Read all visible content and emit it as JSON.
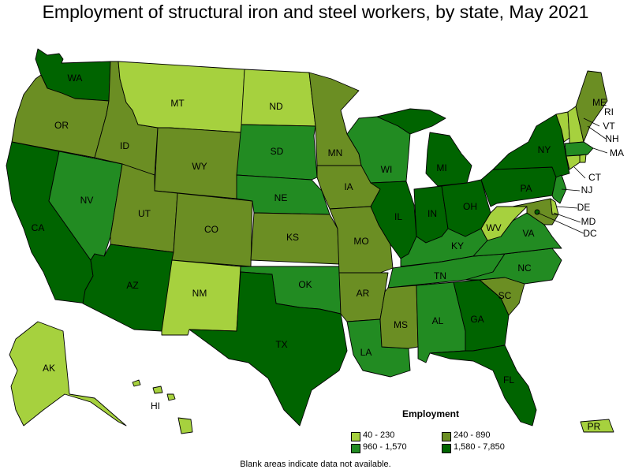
{
  "title": "Employment of structural iron and steel workers, by state, May 2021",
  "legend": {
    "title": "Employment",
    "items": [
      {
        "label": "40 - 230",
        "color": "#a6d13e"
      },
      {
        "label": "240 - 890",
        "color": "#6b8e23"
      },
      {
        "label": "960 - 1,570",
        "color": "#228b22"
      },
      {
        "label": "1,580 - 7,850",
        "color": "#006400"
      }
    ]
  },
  "note": "Blank areas indicate data not available.",
  "states": {
    "WA": {
      "label": "WA",
      "color": "#006400"
    },
    "OR": {
      "label": "OR",
      "color": "#6b8e23"
    },
    "CA": {
      "label": "CA",
      "color": "#006400"
    },
    "NV": {
      "label": "NV",
      "color": "#228b22"
    },
    "ID": {
      "label": "ID",
      "color": "#6b8e23"
    },
    "MT": {
      "label": "MT",
      "color": "#a6d13e"
    },
    "WY": {
      "label": "WY",
      "color": "#6b8e23"
    },
    "UT": {
      "label": "UT",
      "color": "#6b8e23"
    },
    "AZ": {
      "label": "AZ",
      "color": "#006400"
    },
    "CO": {
      "label": "CO",
      "color": "#6b8e23"
    },
    "NM": {
      "label": "NM",
      "color": "#a6d13e"
    },
    "ND": {
      "label": "ND",
      "color": "#a6d13e"
    },
    "SD": {
      "label": "SD",
      "color": "#228b22"
    },
    "NE": {
      "label": "NE",
      "color": "#228b22"
    },
    "KS": {
      "label": "KS",
      "color": "#6b8e23"
    },
    "OK": {
      "label": "OK",
      "color": "#228b22"
    },
    "TX": {
      "label": "TX",
      "color": "#006400"
    },
    "MN": {
      "label": "MN",
      "color": "#6b8e23"
    },
    "IA": {
      "label": "IA",
      "color": "#6b8e23"
    },
    "MO": {
      "label": "MO",
      "color": "#6b8e23"
    },
    "AR": {
      "label": "AR",
      "color": "#6b8e23"
    },
    "LA": {
      "label": "LA",
      "color": "#228b22"
    },
    "WI": {
      "label": "WI",
      "color": "#228b22"
    },
    "IL": {
      "label": "IL",
      "color": "#006400"
    },
    "MI": {
      "label": "MI",
      "color": "#006400"
    },
    "IN": {
      "label": "IN",
      "color": "#006400"
    },
    "OH": {
      "label": "OH",
      "color": "#006400"
    },
    "KY": {
      "label": "KY",
      "color": "#228b22"
    },
    "TN": {
      "label": "TN",
      "color": "#228b22"
    },
    "MS": {
      "label": "MS",
      "color": "#6b8e23"
    },
    "AL": {
      "label": "AL",
      "color": "#228b22"
    },
    "GA": {
      "label": "GA",
      "color": "#006400"
    },
    "FL": {
      "label": "FL",
      "color": "#006400"
    },
    "SC": {
      "label": "SC",
      "color": "#6b8e23"
    },
    "NC": {
      "label": "NC",
      "color": "#228b22"
    },
    "VA": {
      "label": "VA",
      "color": "#228b22"
    },
    "WV": {
      "label": "WV",
      "color": "#a6d13e"
    },
    "PA": {
      "label": "PA",
      "color": "#006400"
    },
    "NY": {
      "label": "NY",
      "color": "#006400"
    },
    "VT": {
      "label": "VT",
      "color": "#a6d13e"
    },
    "NH": {
      "label": "NH",
      "color": "#a6d13e"
    },
    "ME": {
      "label": "ME",
      "color": "#6b8e23"
    },
    "MA": {
      "label": "MA",
      "color": "#228b22"
    },
    "RI": {
      "label": "RI",
      "color": "#a6d13e"
    },
    "CT": {
      "label": "CT",
      "color": "#a6d13e"
    },
    "NJ": {
      "label": "NJ",
      "color": "#228b22"
    },
    "DE": {
      "label": "DE",
      "color": "#a6d13e"
    },
    "MD": {
      "label": "MD",
      "color": "#6b8e23"
    },
    "DC": {
      "label": "DC",
      "color": "#006400"
    },
    "AK": {
      "label": "AK",
      "color": "#a6d13e"
    },
    "HI": {
      "label": "HI",
      "color": "#a6d13e"
    },
    "PR": {
      "label": "PR",
      "color": "#a6d13e"
    }
  }
}
